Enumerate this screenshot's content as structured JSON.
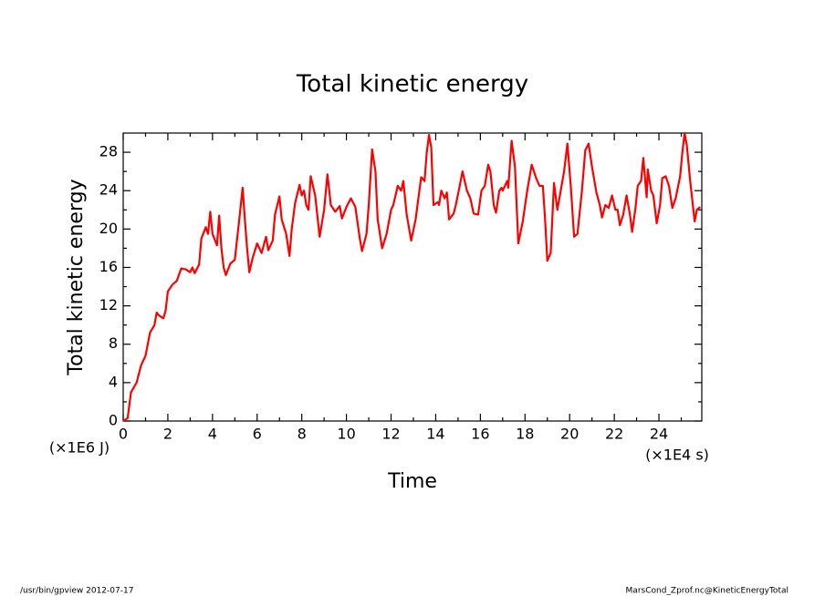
{
  "chart_data": {
    "type": "line",
    "title": "Total kinetic energy",
    "x_label": "Time",
    "y_label": "Total kinetic energy",
    "x_unit": "(×1E4 s)",
    "y_unit": "(×1E6 J)",
    "footer_left": "/usr/bin/gpview  2012-07-17",
    "footer_right": "MarsCond_Zprof.nc@KineticEnergyTotal",
    "xlim": [
      0,
      25.92
    ],
    "ylim": [
      0,
      30
    ],
    "xticks": [
      0,
      2,
      4,
      6,
      8,
      10,
      12,
      14,
      16,
      18,
      20,
      22,
      24
    ],
    "yticks": [
      0,
      4,
      8,
      12,
      16,
      20,
      24,
      28
    ],
    "x": [
      0,
      0.2,
      0.35,
      0.6,
      0.8,
      1.0,
      1.1,
      1.2,
      1.4,
      1.5,
      1.6,
      1.8,
      1.9,
      2.0,
      2.2,
      2.4,
      2.6,
      2.8,
      3.0,
      3.1,
      3.2,
      3.4,
      3.5,
      3.7,
      3.8,
      3.9,
      4.0,
      4.2,
      4.3,
      4.4,
      4.5,
      4.6,
      4.8,
      5.0,
      5.2,
      5.35,
      5.45,
      5.55,
      5.65,
      5.8,
      6.0,
      6.2,
      6.4,
      6.5,
      6.7,
      6.8,
      7.0,
      7.1,
      7.3,
      7.45,
      7.55,
      7.7,
      7.9,
      8.0,
      8.1,
      8.2,
      8.3,
      8.4,
      8.6,
      8.8,
      9.0,
      9.15,
      9.3,
      9.5,
      9.7,
      9.8,
      10.0,
      10.2,
      10.4,
      10.6,
      10.7,
      10.9,
      11.0,
      11.15,
      11.3,
      11.4,
      11.6,
      11.8,
      12.0,
      12.1,
      12.3,
      12.45,
      12.55,
      12.7,
      12.9,
      13.1,
      13.2,
      13.35,
      13.5,
      13.6,
      13.7,
      13.8,
      13.9,
      14.1,
      14.15,
      14.25,
      14.4,
      14.5,
      14.6,
      14.8,
      14.9,
      15.05,
      15.2,
      15.4,
      15.55,
      15.7,
      15.9,
      16.05,
      16.2,
      16.35,
      16.45,
      16.6,
      16.7,
      16.85,
      16.95,
      17.0,
      17.2,
      17.25,
      17.4,
      17.55,
      17.7,
      17.9,
      18.1,
      18.3,
      18.5,
      18.65,
      18.8,
      18.9,
      19.0,
      19.15,
      19.3,
      19.45,
      19.6,
      19.75,
      19.9,
      20.05,
      20.2,
      20.35,
      20.55,
      20.7,
      20.85,
      21.0,
      21.2,
      21.35,
      21.45,
      21.6,
      21.75,
      21.9,
      22.05,
      22.15,
      22.25,
      22.4,
      22.55,
      22.7,
      22.8,
      22.95,
      23.05,
      23.2,
      23.3,
      23.45,
      23.5,
      23.65,
      23.75,
      23.9,
      24.05,
      24.15,
      24.3,
      24.45,
      24.6,
      24.75,
      24.95,
      25.05,
      25.15,
      25.25,
      25.4,
      25.6,
      25.7,
      25.85
    ],
    "series": [
      {
        "color": "#ff0000",
        "values": [
          0,
          0.3,
          3,
          4,
          5.8,
          6.8,
          8,
          9.2,
          10,
          11.3,
          11,
          10.7,
          11.5,
          13.5,
          14.2,
          14.6,
          15.9,
          15.8,
          15.5,
          16,
          15.4,
          16.3,
          19,
          20.2,
          19.5,
          21.8,
          19.5,
          18.3,
          21.4,
          18,
          16,
          15.2,
          16.4,
          16.8,
          21,
          24.3,
          21,
          18,
          15.5,
          17,
          18.5,
          17.5,
          19.2,
          17.8,
          18.8,
          21.5,
          23.4,
          21,
          19.5,
          17.2,
          20,
          22.7,
          24.6,
          23.5,
          24,
          22.5,
          22,
          25.5,
          23.5,
          19.2,
          22,
          25.7,
          22.5,
          21.8,
          22.4,
          21.1,
          22.3,
          23.2,
          22.3,
          19,
          17.7,
          19.5,
          22.5,
          28.3,
          26,
          21,
          18,
          19.5,
          22,
          22.5,
          24.5,
          24,
          25,
          21.5,
          18.8,
          21,
          22.8,
          25.4,
          25,
          28,
          29.8,
          28.5,
          22.5,
          22.8,
          22.5,
          24,
          23.2,
          23.8,
          21,
          21.6,
          22.5,
          24.2,
          26,
          24,
          23.2,
          21.6,
          21.5,
          24,
          24.5,
          26.7,
          26,
          22.5,
          21.7,
          24,
          24.3,
          24,
          25,
          24.3,
          29.2,
          26.5,
          18.5,
          20.8,
          24,
          26.7,
          25.3,
          24.5,
          24.5,
          21,
          16.7,
          17.5,
          24.8,
          22,
          24,
          26,
          28.9,
          24.5,
          19.2,
          19.5,
          24,
          28.2,
          28.9,
          26.5,
          23.8,
          22.5,
          21.2,
          22.5,
          22.2,
          23.5,
          22,
          22,
          20.4,
          21.5,
          23.5,
          21.5,
          19.7,
          22.2,
          24.5,
          25,
          27.4,
          23.3,
          26.2,
          24,
          23.5,
          20.6,
          22.5,
          25.3,
          25.5,
          24.5,
          22.2,
          23.2,
          25.5,
          28,
          30,
          28.7,
          25,
          20.8,
          22,
          22.3
        ]
      }
    ]
  }
}
